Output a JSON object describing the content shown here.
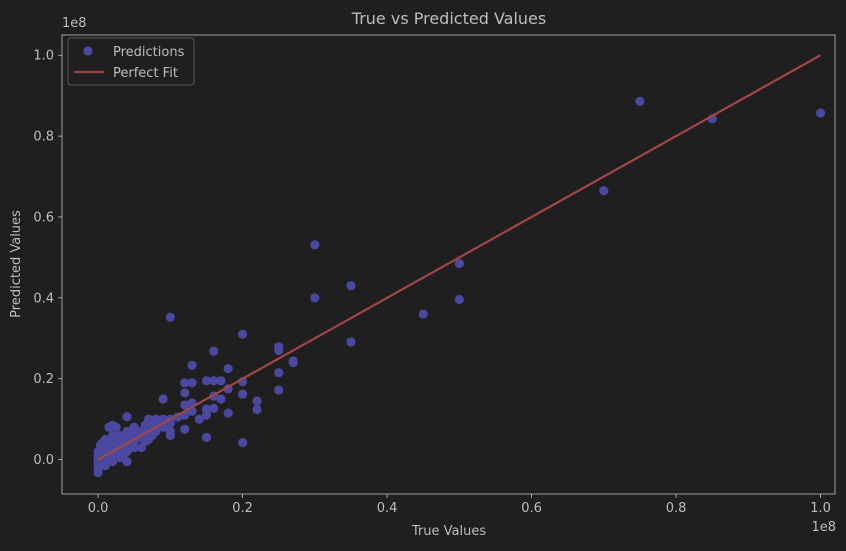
{
  "chart_data": {
    "type": "scatter",
    "title": "True vs Predicted Values",
    "xlabel": "True Values",
    "ylabel": "Predicted Values",
    "x_scale_label": "1e8",
    "y_scale_label": "1e8",
    "xlim": [
      -0.05,
      1.02
    ],
    "ylim": [
      -0.085,
      1.05
    ],
    "x_ticks": [
      0.0,
      0.2,
      0.4,
      0.6,
      0.8,
      1.0
    ],
    "y_ticks": [
      0.0,
      0.2,
      0.4,
      0.6,
      0.8,
      1.0
    ],
    "tick_format": "0.1f",
    "grid": false,
    "legend_position": "upper-left",
    "series": [
      {
        "name": "Predictions",
        "kind": "scatter",
        "color": "#4b48a0",
        "points": [
          [
            1.0,
            0.857
          ],
          [
            0.85,
            0.843
          ],
          [
            0.75,
            0.886
          ],
          [
            0.7,
            0.665
          ],
          [
            0.5,
            0.485
          ],
          [
            0.5,
            0.396
          ],
          [
            0.45,
            0.36
          ],
          [
            0.35,
            0.43
          ],
          [
            0.35,
            0.291
          ],
          [
            0.3,
            0.531
          ],
          [
            0.3,
            0.4
          ],
          [
            0.27,
            0.244
          ],
          [
            0.27,
            0.24
          ],
          [
            0.25,
            0.279
          ],
          [
            0.25,
            0.27
          ],
          [
            0.25,
            0.215
          ],
          [
            0.25,
            0.172
          ],
          [
            0.22,
            0.145
          ],
          [
            0.22,
            0.124
          ],
          [
            0.2,
            0.31
          ],
          [
            0.2,
            0.193
          ],
          [
            0.2,
            0.162
          ],
          [
            0.2,
            0.042
          ],
          [
            0.18,
            0.225
          ],
          [
            0.18,
            0.175
          ],
          [
            0.18,
            0.115
          ],
          [
            0.17,
            0.195
          ],
          [
            0.17,
            0.15
          ],
          [
            0.16,
            0.268
          ],
          [
            0.16,
            0.195
          ],
          [
            0.16,
            0.157
          ],
          [
            0.16,
            0.127
          ],
          [
            0.15,
            0.195
          ],
          [
            0.15,
            0.125
          ],
          [
            0.15,
            0.11
          ],
          [
            0.15,
            0.055
          ],
          [
            0.14,
            0.1
          ],
          [
            0.13,
            0.233
          ],
          [
            0.13,
            0.19
          ],
          [
            0.13,
            0.14
          ],
          [
            0.13,
            0.12
          ],
          [
            0.12,
            0.19
          ],
          [
            0.12,
            0.165
          ],
          [
            0.12,
            0.135
          ],
          [
            0.12,
            0.11
          ],
          [
            0.12,
            0.075
          ],
          [
            0.11,
            0.105
          ],
          [
            0.1,
            0.352
          ],
          [
            0.1,
            0.1
          ],
          [
            0.1,
            0.09
          ],
          [
            0.1,
            0.07
          ],
          [
            0.1,
            0.06
          ],
          [
            0.09,
            0.15
          ],
          [
            0.09,
            0.1
          ],
          [
            0.09,
            0.08
          ],
          [
            0.08,
            0.1
          ],
          [
            0.08,
            0.09
          ],
          [
            0.08,
            0.07
          ],
          [
            0.075,
            0.095
          ],
          [
            0.075,
            0.06
          ],
          [
            0.07,
            0.1
          ],
          [
            0.07,
            0.08
          ],
          [
            0.07,
            0.065
          ],
          [
            0.07,
            0.05
          ],
          [
            0.065,
            0.085
          ],
          [
            0.065,
            0.045
          ],
          [
            0.06,
            0.07
          ],
          [
            0.06,
            0.055
          ],
          [
            0.06,
            0.03
          ],
          [
            0.055,
            0.06
          ],
          [
            0.05,
            0.08
          ],
          [
            0.05,
            0.06
          ],
          [
            0.05,
            0.045
          ],
          [
            0.05,
            0.03
          ],
          [
            0.045,
            0.055
          ],
          [
            0.045,
            0.03
          ],
          [
            0.04,
            0.106
          ],
          [
            0.04,
            0.07
          ],
          [
            0.04,
            0.05
          ],
          [
            0.04,
            0.04
          ],
          [
            0.04,
            0.02
          ],
          [
            0.04,
            -0.005
          ],
          [
            0.035,
            0.05
          ],
          [
            0.035,
            0.03
          ],
          [
            0.035,
            0.01
          ],
          [
            0.03,
            0.06
          ],
          [
            0.03,
            0.045
          ],
          [
            0.03,
            0.025
          ],
          [
            0.03,
            0.005
          ],
          [
            0.025,
            0.08
          ],
          [
            0.025,
            0.045
          ],
          [
            0.025,
            0.03
          ],
          [
            0.025,
            0.015
          ],
          [
            0.02,
            0.085
          ],
          [
            0.02,
            0.06
          ],
          [
            0.02,
            0.04
          ],
          [
            0.02,
            0.025
          ],
          [
            0.02,
            0.01
          ],
          [
            0.02,
            -0.005
          ],
          [
            0.015,
            0.08
          ],
          [
            0.015,
            0.04
          ],
          [
            0.015,
            0.02
          ],
          [
            0.015,
            0.005
          ],
          [
            0.01,
            0.05
          ],
          [
            0.01,
            0.03
          ],
          [
            0.01,
            0.015
          ],
          [
            0.01,
            0.0
          ],
          [
            0.01,
            -0.015
          ],
          [
            0.005,
            0.04
          ],
          [
            0.005,
            0.02
          ],
          [
            0.005,
            0.01
          ],
          [
            0.005,
            -0.01
          ],
          [
            0.003,
            0.035
          ],
          [
            0.003,
            0.005
          ],
          [
            0.0,
            0.02
          ],
          [
            0.0,
            0.01
          ],
          [
            0.0,
            0.0
          ],
          [
            0.0,
            -0.01
          ],
          [
            0.0,
            -0.02
          ],
          [
            0.0,
            -0.032
          ]
        ]
      },
      {
        "name": "Perfect Fit",
        "kind": "line",
        "color": "#a14548",
        "points": [
          [
            0.0,
            0.0
          ],
          [
            1.0,
            1.0
          ]
        ]
      }
    ]
  }
}
